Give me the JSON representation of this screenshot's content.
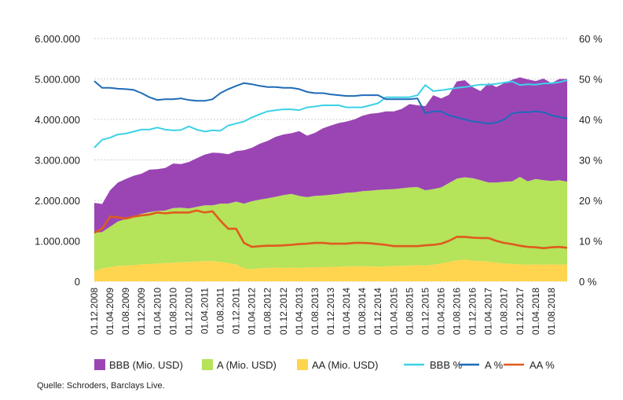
{
  "source": "Quelle: Schroders, Barclays Live.",
  "chart_data": {
    "type": "area",
    "title": "",
    "xlabel": "",
    "ylabel": "",
    "ylabel_right": "",
    "grid": "horizontal",
    "legend_position": "bottom",
    "ylim": [
      0,
      6000000
    ],
    "ylim_right": [
      0,
      60
    ],
    "left_tick_labels": [
      "0",
      "1.000.000",
      "2.000.000",
      "3.000.000",
      "4.000.000",
      "5.000.000",
      "6.000.000"
    ],
    "right_tick_labels": [
      "0 %",
      "10 %",
      "20 %",
      "30 %",
      "40 %",
      "50 %",
      "60 %"
    ],
    "x_tick_labels": [
      "01.12.2008",
      "01.04.2009",
      "01.08.2009",
      "01.12.2009",
      "01.04.2010",
      "01.08.2010",
      "01.12.2010",
      "01.04.2011",
      "01.08.2011",
      "01.12.2011",
      "01.04.2012",
      "01.08.2012",
      "01.12.2012",
      "01.04.2013",
      "01.08.2013",
      "01.12.2013",
      "01.04.2014",
      "01.08.2014",
      "01.12.2014",
      "01.04.2015",
      "01.08.2015",
      "01.12.2015",
      "01.04.2016",
      "01.08.2016",
      "01.12.2016",
      "01.04.2017",
      "01.08.2017",
      "01.12.2017",
      "01.04.2018",
      "01.08.2018"
    ],
    "x": [
      "01.12.2008",
      "01.02.2009",
      "01.04.2009",
      "01.06.2009",
      "01.08.2009",
      "01.10.2009",
      "01.12.2009",
      "01.02.2010",
      "01.04.2010",
      "01.06.2010",
      "01.08.2010",
      "01.10.2010",
      "01.12.2010",
      "01.02.2011",
      "01.04.2011",
      "01.06.2011",
      "01.08.2011",
      "01.10.2011",
      "01.12.2011",
      "01.02.2012",
      "01.04.2012",
      "01.06.2012",
      "01.08.2012",
      "01.10.2012",
      "01.12.2012",
      "01.02.2013",
      "01.04.2013",
      "01.06.2013",
      "01.08.2013",
      "01.10.2013",
      "01.12.2013",
      "01.02.2014",
      "01.04.2014",
      "01.06.2014",
      "01.08.2014",
      "01.10.2014",
      "01.12.2014",
      "01.02.2015",
      "01.04.2015",
      "01.06.2015",
      "01.08.2015",
      "01.10.2015",
      "01.12.2015",
      "01.02.2016",
      "01.04.2016",
      "01.06.2016",
      "01.08.2016",
      "01.10.2016",
      "01.12.2016",
      "01.02.2017",
      "01.04.2017",
      "01.06.2017",
      "01.08.2017",
      "01.10.2017",
      "01.12.2017",
      "01.02.2018",
      "01.04.2018",
      "01.06.2018",
      "01.08.2018",
      "01.10.2018",
      "01.12.2018"
    ],
    "stacked_series": [
      {
        "name": "AA (Mio. USD)",
        "color": "#FFD54F",
        "values": [
          250000,
          320000,
          350000,
          380000,
          390000,
          400000,
          420000,
          430000,
          440000,
          450000,
          460000,
          470000,
          480000,
          490000,
          500000,
          500000,
          480000,
          450000,
          420000,
          320000,
          300000,
          320000,
          330000,
          340000,
          330000,
          340000,
          330000,
          340000,
          350000,
          350000,
          360000,
          360000,
          370000,
          370000,
          370000,
          370000,
          360000,
          370000,
          380000,
          380000,
          390000,
          400000,
          390000,
          410000,
          440000,
          480000,
          520000,
          540000,
          510000,
          500000,
          490000,
          460000,
          440000,
          430000,
          420000,
          410000,
          420000,
          410000,
          420000,
          410000,
          420000
        ]
      },
      {
        "name": "A (Mio. USD)",
        "color": "#B5E35A",
        "values": [
          950000,
          900000,
          1000000,
          1100000,
          1150000,
          1200000,
          1250000,
          1280000,
          1300000,
          1300000,
          1350000,
          1350000,
          1320000,
          1350000,
          1380000,
          1380000,
          1440000,
          1470000,
          1550000,
          1600000,
          1680000,
          1700000,
          1720000,
          1750000,
          1800000,
          1820000,
          1780000,
          1740000,
          1760000,
          1770000,
          1780000,
          1800000,
          1820000,
          1830000,
          1860000,
          1870000,
          1900000,
          1900000,
          1900000,
          1920000,
          1930000,
          1930000,
          1860000,
          1870000,
          1880000,
          1950000,
          2020000,
          2030000,
          2040000,
          2000000,
          1950000,
          1980000,
          2020000,
          2040000,
          2160000,
          2060000,
          2110000,
          2090000,
          2060000,
          2090000,
          2040000
        ]
      },
      {
        "name": "BBB (Mio. USD)",
        "color": "#9B45B5",
        "values": [
          740000,
          690000,
          900000,
          960000,
          990000,
          1010000,
          990000,
          1050000,
          1030000,
          1050000,
          1100000,
          1080000,
          1150000,
          1200000,
          1250000,
          1300000,
          1250000,
          1220000,
          1250000,
          1320000,
          1320000,
          1380000,
          1420000,
          1480000,
          1500000,
          1500000,
          1600000,
          1520000,
          1560000,
          1660000,
          1710000,
          1750000,
          1760000,
          1800000,
          1860000,
          1900000,
          1900000,
          1930000,
          1920000,
          1960000,
          2060000,
          2020000,
          2080000,
          2320000,
          2200000,
          2180000,
          2400000,
          2400000,
          2250000,
          2200000,
          2460000,
          2360000,
          2440000,
          2510000,
          2460000,
          2520000,
          2420000,
          2510000,
          2420000,
          2500000,
          2540000
        ]
      }
    ],
    "line_series": [
      {
        "name": "BBB %",
        "color": "#3CD2E6",
        "values": [
          33,
          35,
          35.5,
          36.3,
          36.5,
          37,
          37.5,
          37.5,
          38,
          37.5,
          37.3,
          37.4,
          38.3,
          37.5,
          37,
          37.3,
          37.2,
          38.5,
          39,
          39.5,
          40.5,
          41.3,
          42,
          42.3,
          42.5,
          42.5,
          42.3,
          43,
          43.2,
          43.5,
          43.5,
          43.5,
          43,
          43,
          43,
          43.5,
          44,
          45.5,
          45.5,
          45.5,
          45.5,
          46,
          48.5,
          47,
          47.2,
          47.5,
          47.8,
          48,
          48.3,
          48.6,
          48.6,
          48.8,
          49.1,
          49.4,
          48.5,
          48.7,
          48.6,
          48.9,
          49,
          49.2,
          49.7
        ]
      },
      {
        "name": "A %",
        "color": "#1E6BB8",
        "values": [
          49.5,
          47.8,
          47.8,
          47.6,
          47.5,
          47.3,
          46.5,
          45.5,
          44.8,
          45,
          45,
          45.2,
          44.8,
          44.6,
          44.6,
          45,
          46.5,
          47.5,
          48.3,
          49,
          48.7,
          48.3,
          48,
          48,
          47.8,
          47.8,
          47.5,
          46.8,
          46.5,
          46.5,
          46.2,
          46,
          45.8,
          45.8,
          46,
          46,
          46,
          45,
          45,
          45,
          45,
          45.2,
          41.5,
          42,
          42,
          41,
          40.5,
          40,
          39.5,
          39.3,
          39,
          39.2,
          40,
          41.5,
          41.8,
          41.8,
          42,
          41.8,
          41,
          40.6,
          40.2
        ]
      },
      {
        "name": "AA %",
        "color": "#E05A1E",
        "values": [
          12,
          13,
          16,
          15.8,
          15.5,
          16,
          16.3,
          16.5,
          17,
          16.8,
          17,
          17,
          17,
          17.5,
          17,
          17.3,
          15,
          13,
          13,
          9.5,
          8.5,
          8.7,
          8.8,
          8.8,
          8.9,
          9,
          9.2,
          9.3,
          9.5,
          9.5,
          9.3,
          9.3,
          9.3,
          9.5,
          9.5,
          9.4,
          9.2,
          9,
          8.7,
          8.7,
          8.7,
          8.7,
          8.9,
          9,
          9.3,
          10,
          11,
          11,
          10.8,
          10.7,
          10.7,
          10,
          9.5,
          9.2,
          8.8,
          8.5,
          8.4,
          8.2,
          8.4,
          8.5,
          8.3
        ]
      }
    ],
    "legend": [
      {
        "name": "BBB (Mio. USD)",
        "kind": "area",
        "color": "#9B45B5"
      },
      {
        "name": "A (Mio. USD)",
        "kind": "area",
        "color": "#B5E35A"
      },
      {
        "name": "AA (Mio. USD)",
        "kind": "area",
        "color": "#FFD54F"
      },
      {
        "name": "BBB %",
        "kind": "line",
        "color": "#3CD2E6"
      },
      {
        "name": "A %",
        "kind": "line",
        "color": "#1E6BB8"
      },
      {
        "name": "AA %",
        "kind": "line",
        "color": "#E05A1E"
      }
    ]
  }
}
